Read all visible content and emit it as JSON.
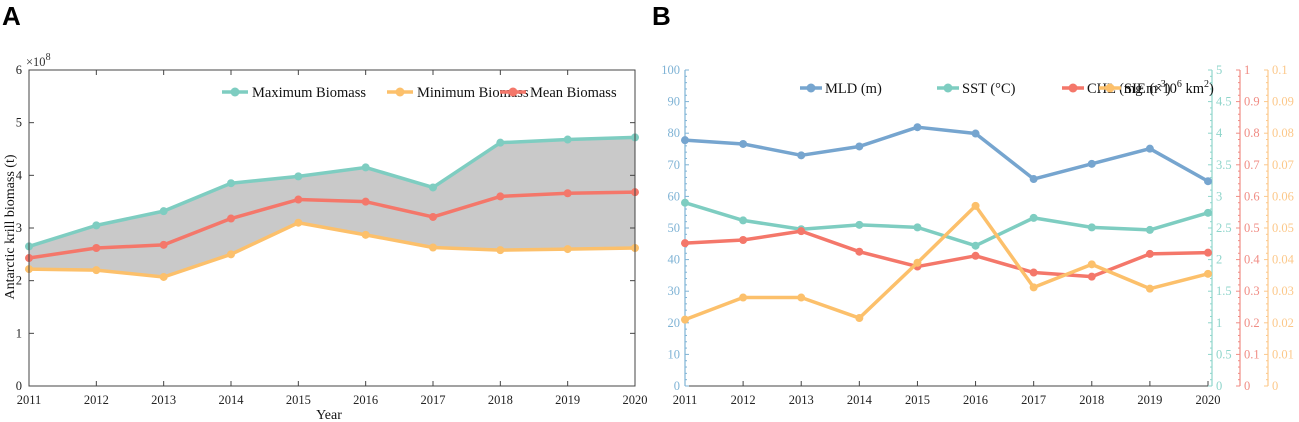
{
  "chart_data": [
    {
      "panel_label": "A",
      "type": "line",
      "x": [
        "2011",
        "2012",
        "2013",
        "2014",
        "2015",
        "2016",
        "2017",
        "2018",
        "2019",
        "2020"
      ],
      "ylabel": "Antarctic krill biomass (t)",
      "xlabel": "Year",
      "yscale_prefix": "×10",
      "yscale_exp": "8",
      "ylim": [
        0,
        6
      ],
      "yticks": [
        "0",
        "1",
        "2",
        "3",
        "4",
        "5",
        "6"
      ],
      "fill_between": [
        "Minimum Biomass",
        "Maximum Biomass"
      ],
      "fill_color": "#c9c9c9",
      "legend_position": "top-right",
      "series": [
        {
          "name": "Maximum Biomass",
          "color": "#7ecdc1",
          "values": [
            2.65,
            3.05,
            3.32,
            3.85,
            3.98,
            4.15,
            3.77,
            4.62,
            4.68,
            4.72
          ]
        },
        {
          "name": "Minimum Biomass",
          "color": "#fcc06b",
          "values": [
            2.22,
            2.2,
            2.07,
            2.5,
            3.1,
            2.87,
            2.63,
            2.58,
            2.6,
            2.62
          ]
        },
        {
          "name": "Mean Biomass",
          "color": "#f4776a",
          "values": [
            2.43,
            2.62,
            2.68,
            3.18,
            3.54,
            3.5,
            3.21,
            3.6,
            3.66,
            3.68
          ]
        }
      ]
    },
    {
      "panel_label": "B",
      "type": "line",
      "x": [
        "2011",
        "2012",
        "2013",
        "2014",
        "2015",
        "2016",
        "2017",
        "2018",
        "2019",
        "2020"
      ],
      "legend_position": "top-right",
      "axes": [
        {
          "name": "MLD axis",
          "side": "left",
          "color": "#7fb3d5",
          "ylim": [
            0,
            100
          ],
          "ticks": [
            "0",
            "10",
            "20",
            "30",
            "40",
            "50",
            "60",
            "70",
            "80",
            "90",
            "100"
          ]
        },
        {
          "name": "SST axis",
          "side": "right",
          "color": "#8fd5cb",
          "ylim": [
            0,
            5
          ],
          "ticks": [
            "0",
            "0.5",
            "1",
            "1.5",
            "2",
            "2.5",
            "3",
            "3.5",
            "4",
            "4.5",
            "5"
          ]
        },
        {
          "name": "CHL axis",
          "side": "right",
          "color": "#f08c84",
          "ylim": [
            0,
            1
          ],
          "ticks": [
            "0",
            "0.1",
            "0.2",
            "0.3",
            "0.4",
            "0.5",
            "0.6",
            "0.7",
            "0.8",
            "0.9",
            "1"
          ]
        },
        {
          "name": "SIE axis",
          "side": "right",
          "color": "#fcc88a",
          "ylim": [
            0,
            0.1
          ],
          "ticks": [
            "0",
            "0.01",
            "0.02",
            "0.03",
            "0.04",
            "0.05",
            "0.06",
            "0.07",
            "0.08",
            "0.09",
            "0.1"
          ]
        }
      ],
      "series": [
        {
          "name": "MLD (m)",
          "legend_main": "MLD (m)",
          "legend_sup": "",
          "legend_tail": "",
          "axis": 0,
          "color": "#76a5cf",
          "values": [
            77.8,
            76.6,
            73.0,
            75.8,
            81.9,
            79.9,
            65.5,
            70.3,
            75.1,
            64.8
          ]
        },
        {
          "name": "SST (°C)",
          "legend_main": "SST (°C)",
          "legend_sup": "",
          "legend_tail": "",
          "axis": 1,
          "color": "#7ecdc1",
          "values": [
            2.9,
            2.62,
            2.48,
            2.55,
            2.51,
            2.22,
            2.66,
            2.51,
            2.47,
            2.74
          ]
        },
        {
          "name": "CHL (mg m-3)",
          "legend_main": "CHL (mg m",
          "legend_sup": "-3",
          "legend_tail": ")",
          "axis": 2,
          "color": "#f4776a",
          "values": [
            0.452,
            0.462,
            0.49,
            0.425,
            0.378,
            0.412,
            0.359,
            0.346,
            0.418,
            0.422
          ]
        },
        {
          "name": "SIE (×10^6 km^2)",
          "legend_main": "SIE (×10",
          "legend_sup": "6",
          "legend_tail": " km",
          "legend_sup2": "2",
          "legend_tail2": ")",
          "axis": 3,
          "color": "#fcc06b",
          "values": [
            0.021,
            0.028,
            0.028,
            0.0215,
            0.039,
            0.057,
            0.0312,
            0.0385,
            0.0308,
            0.0355
          ]
        }
      ]
    }
  ]
}
